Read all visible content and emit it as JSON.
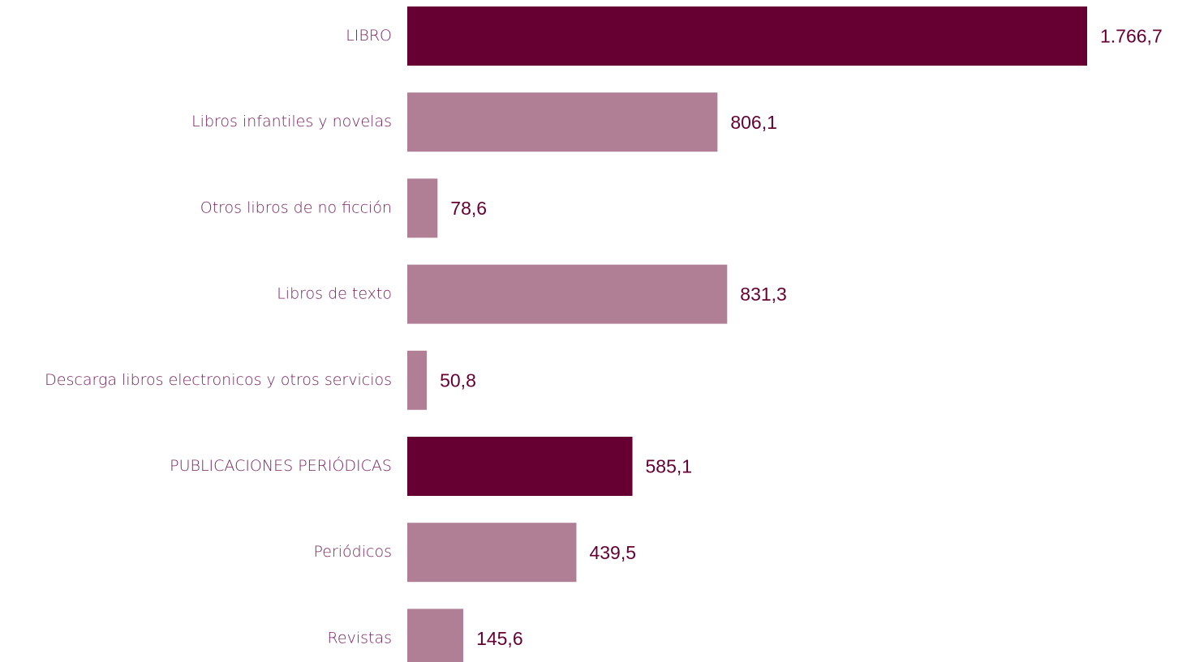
{
  "chart_data": {
    "type": "bar",
    "categories": [
      "LIBRO",
      "Libros infantiles y novelas",
      "Otros libros de no ficción",
      "Libros de texto",
      "Descarga libros electronicos y otros servicios",
      "PUBLICACIONES PERIÓDICAS",
      "Periódicos",
      "Revistas"
    ],
    "values": [
      1766.7,
      806.1,
      78.6,
      831.3,
      50.8,
      585.1,
      439.5,
      145.6
    ],
    "value_labels": [
      "1.766,7",
      "806,1",
      "78,6",
      "831,3",
      "50,8",
      "585,1",
      "439,5",
      "145,6"
    ],
    "colors": [
      "#660033",
      "#b07f96",
      "#b07f96",
      "#b07f96",
      "#b07f96",
      "#660033",
      "#b07f96",
      "#b07f96"
    ],
    "orientation": "horizontal"
  }
}
